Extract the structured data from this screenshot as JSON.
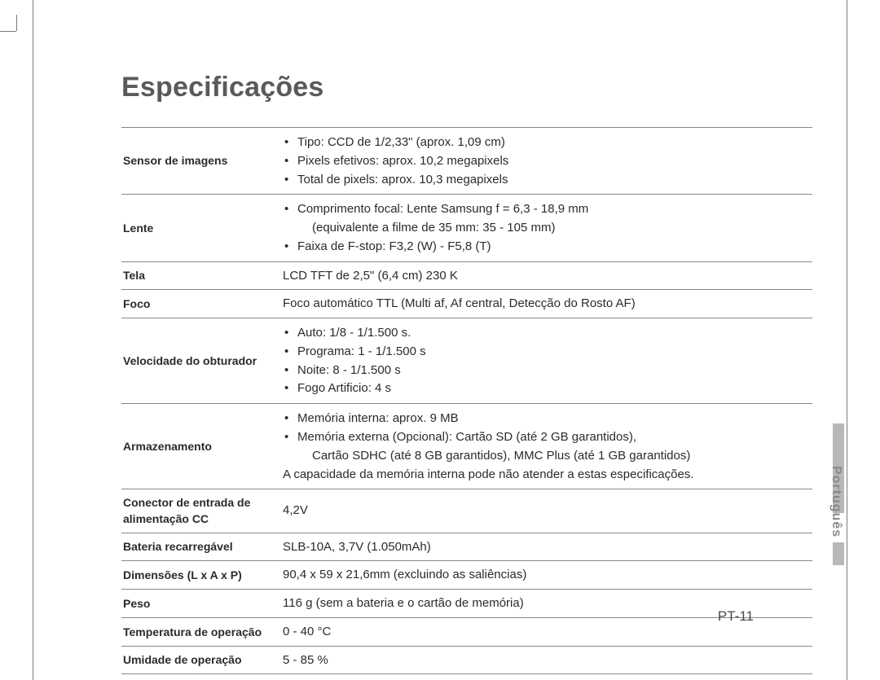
{
  "page": {
    "title": "Especificações",
    "side_label": "Português",
    "page_number": "PT-11",
    "colors": {
      "text": "#2b2b2b",
      "title": "#5a5a5a",
      "rule": "#888888",
      "side_tab": "#b8b8b8",
      "side_label": "#8a8a8a",
      "background": "#ffffff",
      "crop_mark": "#7a7a7a"
    },
    "typography": {
      "title_fontsize_pt": 26,
      "body_fontsize_pt": 11,
      "label_fontsize_pt": 10.5,
      "label_weight": "bold",
      "font_family": "Arial"
    }
  },
  "specs": {
    "rows": [
      {
        "label": "Sensor de imagens",
        "bullets": [
          "Tipo: CCD de 1/2,33\" (aprox. 1,09 cm)",
          "Pixels efetivos: aprox. 10,2 megapixels",
          "Total de pixels: aprox. 10,3 megapixels"
        ]
      },
      {
        "label": "Lente",
        "bullets": [
          "Comprimento focal: Lente Samsung f = 6,3 - 18,9 mm",
          "Faixa de F-stop: F3,2 (W) - F5,8 (T)"
        ],
        "bullet_sub_after_0": "(equivalente a filme de 35 mm: 35 - 105 mm)"
      },
      {
        "label": "Tela",
        "text": "LCD TFT de 2,5\" (6,4 cm) 230 K"
      },
      {
        "label": "Foco",
        "text": "Foco automático TTL (Multi af, Af central, Detecção do Rosto AF)"
      },
      {
        "label": "Velocidade do obturador",
        "bullets": [
          "Auto: 1/8 - 1/1.500 s.",
          "Programa: 1 - 1/1.500 s",
          "Noite: 8 - 1/1.500 s",
          "Fogo Artificio: 4 s"
        ]
      },
      {
        "label": "Armazenamento",
        "bullets": [
          "Memória interna: aprox. 9 MB",
          "Memória externa (Opcional): Cartão SD (até 2 GB garantidos),"
        ],
        "bullet_sub_after_1": "Cartão SDHC (até 8 GB garantidos), MMC Plus (até 1 GB garantidos)",
        "note": "A capacidade da memória interna pode não atender a estas especificações."
      },
      {
        "label": "Conector de entrada de alimentação CC",
        "text": "4,2V"
      },
      {
        "label": "Bateria recarregável",
        "text": "SLB-10A, 3,7V (1.050mAh)"
      },
      {
        "label": "Dimensões (L x A x P)",
        "text": "90,4 x 59 x 21,6mm (excluindo as saliências)"
      },
      {
        "label": "Peso",
        "text": "116 g (sem a bateria e o cartão de memória)"
      },
      {
        "label": "Temperatura de operação",
        "text": "0 - 40 °C"
      },
      {
        "label": "Umidade de operação",
        "text": "5 - 85 %"
      }
    ]
  }
}
